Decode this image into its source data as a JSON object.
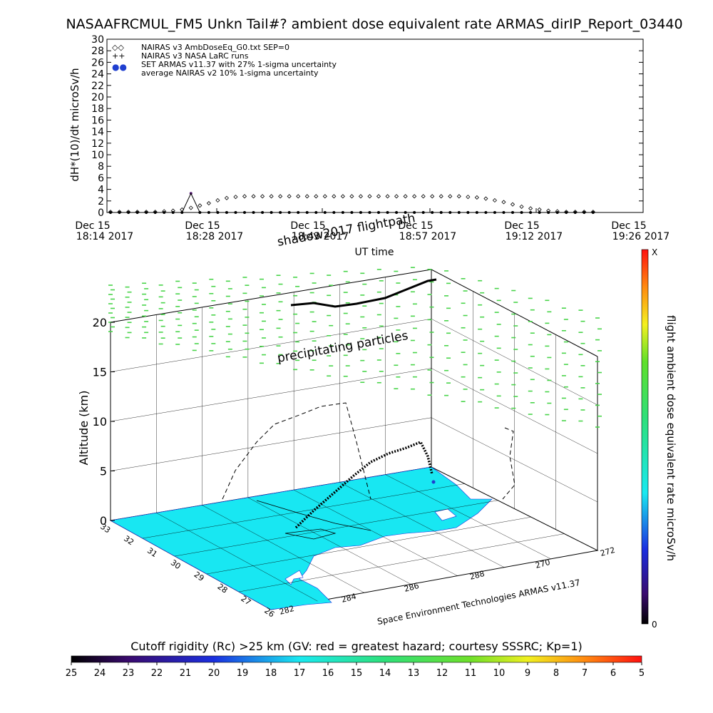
{
  "title": "NASAAFRCMUL_FM5 Unkn Tail#? ambient dose equivalent rate ARMAS_dirIP_Report_03440",
  "chart_data": [
    {
      "type": "scatter",
      "ylabel": "dH*(10)/dt microSv/h",
      "xlabel": "UT time",
      "ylim": [
        0,
        30
      ],
      "yticks": [
        "0",
        "2",
        "4",
        "6",
        "8",
        "10",
        "12",
        "14",
        "16",
        "18",
        "20",
        "22",
        "24",
        "26",
        "28",
        "30"
      ],
      "xticks": [
        {
          "day": "Dec 15",
          "time": "18:14 2017"
        },
        {
          "day": "Dec 15",
          "time": "18:28 2017"
        },
        {
          "day": "Dec 15",
          "time": "18:43 2017"
        },
        {
          "day": "Dec 15",
          "time": "18:57 2017"
        },
        {
          "day": "Dec 15",
          "time": "19:12 2017"
        },
        {
          "day": "Dec 15",
          "time": "19:26 2017"
        }
      ],
      "legend": [
        {
          "symbol": "◇◇",
          "label": "NAIRAS v3 AmbDoseEq_G0.txt SEP=0"
        },
        {
          "symbol": "++",
          "label": "NAIRAS v3 NASA LaRC runs"
        },
        {
          "symbol": "●●",
          "label": "SET ARMAS v11.37 with 27% 1-sigma uncertainty",
          "color": "#1f3fd0"
        },
        {
          "symbol": "",
          "label": "average NAIRAS v2 10% 1-sigma uncertainty"
        }
      ],
      "series": [
        {
          "name": "NAIRAS v3 AmbDoseEq_G0.txt SEP=0",
          "x": [
            0,
            2,
            4,
            6,
            8,
            10,
            12,
            14,
            16,
            18,
            20,
            22,
            24,
            26,
            28,
            30,
            32,
            34,
            36,
            38,
            40,
            42,
            44,
            46,
            48,
            50,
            52,
            54,
            56,
            58,
            60,
            62,
            64,
            66,
            68,
            70,
            72,
            74,
            76,
            78,
            80,
            82,
            84,
            86,
            88,
            90,
            92,
            94,
            96,
            98,
            100,
            102,
            104,
            106,
            108
          ],
          "values": [
            0.1,
            0.1,
            0.1,
            0.1,
            0.1,
            0.1,
            0.2,
            0.3,
            0.5,
            0.8,
            1.2,
            1.6,
            2.1,
            2.5,
            2.7,
            2.8,
            2.8,
            2.8,
            2.8,
            2.8,
            2.8,
            2.8,
            2.8,
            2.8,
            2.8,
            2.8,
            2.8,
            2.8,
            2.8,
            2.8,
            2.8,
            2.8,
            2.8,
            2.8,
            2.8,
            2.8,
            2.8,
            2.8,
            2.8,
            2.8,
            2.7,
            2.6,
            2.4,
            2.1,
            1.8,
            1.4,
            1.0,
            0.7,
            0.5,
            0.3,
            0.2,
            0.1,
            0.1,
            0.1,
            0.1
          ]
        },
        {
          "name": "SET ARMAS v11.37 with 27% 1-sigma uncertainty",
          "x": [
            0,
            2,
            4,
            6,
            8,
            10,
            12,
            14,
            16,
            18,
            20,
            22,
            24,
            26,
            28,
            30,
            32,
            34,
            36,
            38,
            40,
            42,
            44,
            46,
            48,
            50,
            52,
            54,
            56,
            58,
            60,
            62,
            64,
            66,
            68,
            70,
            72,
            74,
            76,
            78,
            80,
            82,
            84,
            86,
            88,
            90,
            92,
            94,
            96,
            98,
            100,
            102,
            104,
            106,
            108
          ],
          "values": [
            0,
            0,
            0,
            0,
            0,
            0,
            0,
            0,
            0,
            3.3,
            0,
            0,
            0,
            0,
            0,
            0,
            0,
            0,
            0,
            0,
            0,
            0,
            0,
            0,
            0,
            0,
            0,
            0,
            0,
            0,
            0,
            0,
            0,
            0,
            0,
            0,
            0,
            0,
            0,
            0,
            0,
            0,
            0,
            0,
            0,
            0,
            0,
            0,
            0,
            0,
            0,
            0,
            0,
            0,
            0
          ]
        }
      ]
    },
    {
      "type": "scatter",
      "zlabel": "Altitude (km)",
      "zticks": [
        "0",
        "5",
        "10",
        "15",
        "20"
      ],
      "lat_ticks": [
        "33",
        "32",
        "31",
        "30",
        "29",
        "28",
        "27",
        "26"
      ],
      "lon_ticks": [
        "282",
        "284",
        "286",
        "288",
        "270",
        "272"
      ],
      "annotations": [
        "shadow2017 flightpath",
        "precipitating particles"
      ],
      "credit": "Space Environment Technologies ARMAS v11.37",
      "colorbar_label": "flight ambient dose equivalent rate microSv/h",
      "colorbar_range": [
        "0",
        "X"
      ]
    }
  ],
  "rigidity_bar": {
    "label": "Cutoff rigidity (Rc) >25 km (GV: red = greatest hazard; courtesy SSSRC; Kp=1)",
    "ticks": [
      "25",
      "24",
      "23",
      "22",
      "21",
      "20",
      "19",
      "18",
      "17",
      "16",
      "15",
      "14",
      "13",
      "12",
      "11",
      "10",
      "9",
      "8",
      "7",
      "6",
      "5"
    ]
  },
  "colors": {
    "particles": "#49d44a",
    "land": "#18e7f2",
    "marker_purple": "#5a1a78",
    "marker_blue": "#1f3fd0"
  }
}
